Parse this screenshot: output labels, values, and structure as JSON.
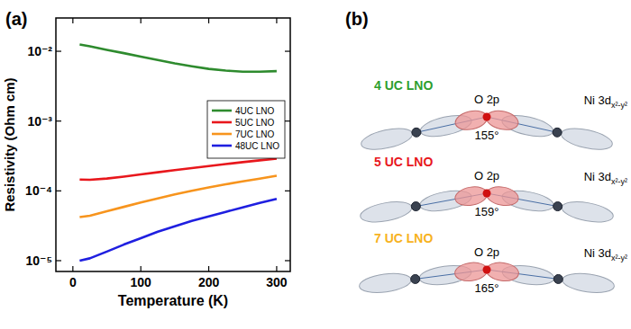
{
  "panels": [
    "(a)",
    "(b)"
  ],
  "chart_data": {
    "type": "line",
    "x_label": "Temperature (K)",
    "y_label": "Resistivity (Ohm cm)",
    "x": [
      10,
      25,
      50,
      75,
      100,
      125,
      150,
      175,
      200,
      225,
      250,
      275,
      300
    ],
    "series": [
      {
        "name": "4UC LNO",
        "color": "#2e8b2e",
        "values": [
          0.0125,
          0.0118,
          0.0105,
          0.0094,
          0.0084,
          0.0075,
          0.0067,
          0.0061,
          0.0056,
          0.0053,
          0.0051,
          0.0051,
          0.0052
        ]
      },
      {
        "name": "5UC LNO",
        "color": "#e8171c",
        "values": [
          0.000145,
          0.000144,
          0.00015,
          0.00016,
          0.000172,
          0.000185,
          0.000198,
          0.000212,
          0.000227,
          0.000242,
          0.000258,
          0.000274,
          0.00029
        ]
      },
      {
        "name": "7UC LNO",
        "color": "#f7941d",
        "values": [
          4.2e-05,
          4.4e-05,
          5.1e-05,
          5.9e-05,
          6.8e-05,
          7.8e-05,
          8.9e-05,
          0.0001,
          0.000112,
          0.000124,
          0.000137,
          0.00015,
          0.000165
        ]
      },
      {
        "name": "48UC LNO",
        "color": "#1f1fe0",
        "values": [
          1e-05,
          1.08e-05,
          1.35e-05,
          1.7e-05,
          2.1e-05,
          2.6e-05,
          3.1e-05,
          3.7e-05,
          4.3e-05,
          5e-05,
          5.8e-05,
          6.7e-05,
          7.7e-05
        ]
      }
    ],
    "xlim": [
      -25,
      320
    ],
    "xticks": [
      0,
      100,
      200,
      300
    ],
    "ylim": [
      7e-06,
      0.03
    ],
    "yticks": [
      {
        "value": 1e-05,
        "label": "10⁻⁵"
      },
      {
        "value": 0.0001,
        "label": "10⁻⁴"
      },
      {
        "value": 0.001,
        "label": "10⁻³"
      },
      {
        "value": 0.01,
        "label": "10⁻²"
      }
    ],
    "log": "y",
    "grid": false,
    "legend": "right"
  },
  "diagram": {
    "rows": [
      {
        "label": "4 UC LNO",
        "color": "#2e9e2e",
        "o_label": "O 2p",
        "ni_label": "Ni 3d",
        "ni_subscript": "x²-y²",
        "angle": 155,
        "angle_label": "155°"
      },
      {
        "label": "5 UC LNO",
        "color": "#e8171c",
        "o_label": "O 2p",
        "ni_label": "Ni 3d",
        "ni_subscript": "x²-y²",
        "angle": 159,
        "angle_label": "159°"
      },
      {
        "label": "7 UC LNO",
        "color": "#f7b21d",
        "o_label": "O 2p",
        "ni_label": "Ni 3d",
        "ni_subscript": "x²-y²",
        "angle": 165,
        "angle_label": "165°"
      }
    ]
  }
}
